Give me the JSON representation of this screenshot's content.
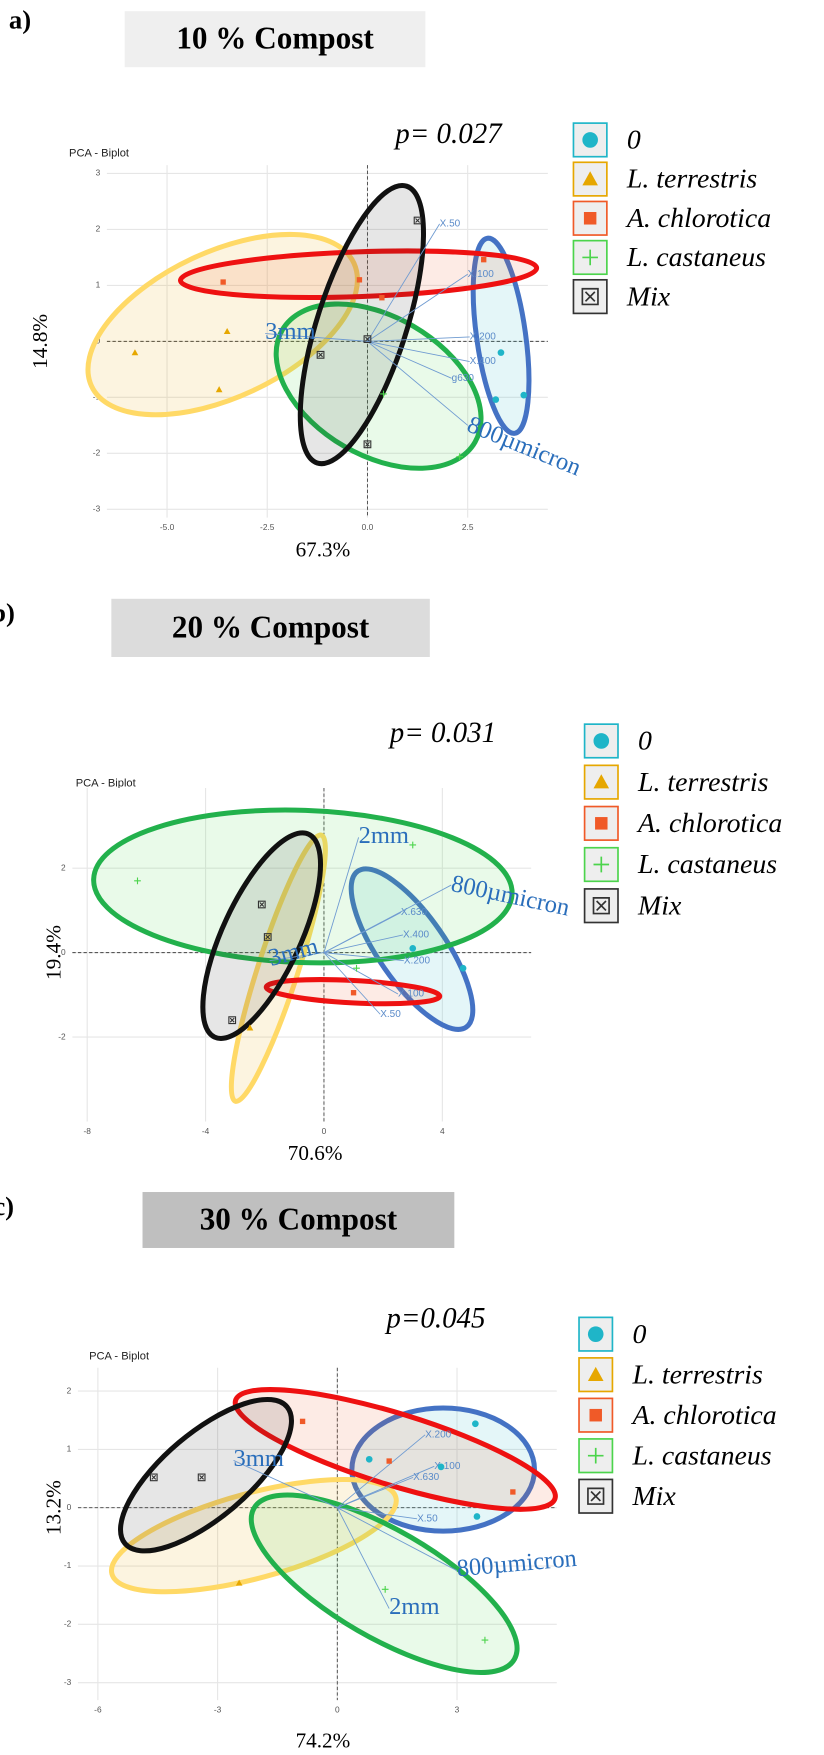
{
  "chart_data": [
    {
      "type": "biplot",
      "panel_label": "a)",
      "title": "10 % Compost",
      "annotation": "p= 0.027",
      "subtitle": "PCA - Biplot",
      "xlabel": "67.3%",
      "ylabel": "14.8%",
      "grid": true,
      "xlim": [
        -6.5,
        4.5
      ],
      "ylim": [
        -3.15,
        3.15
      ],
      "xticks": [
        {
          "value": -5,
          "label": "-5.0"
        },
        {
          "value": -2.5,
          "label": "-2.5"
        },
        {
          "value": 0,
          "label": "0.0"
        },
        {
          "value": 2.5,
          "label": "2.5"
        }
      ],
      "yticks": [
        -3,
        -2,
        -1,
        0,
        1,
        2,
        3
      ],
      "series": [
        {
          "name": "0",
          "color": "#1fb5c8",
          "ellipse_color": "#4472c4",
          "marker": "circle",
          "x": [
            3.33,
            3.2,
            3.9
          ],
          "values": [
            -0.2,
            -1.04,
            -0.96
          ]
        },
        {
          "name": "L. terrestris",
          "color": "#e6a700",
          "ellipse_color": "#ffd966",
          "marker": "triangle",
          "x": [
            -5.8,
            -3.7,
            -3.5
          ],
          "values": [
            -0.2,
            -0.86,
            0.18
          ]
        },
        {
          "name": "A. chlorotica",
          "color": "#f05a28",
          "ellipse_color": "#ee1111",
          "marker": "square",
          "x": [
            -3.6,
            0.36,
            2.9,
            -0.2
          ],
          "values": [
            1.06,
            0.78,
            1.46,
            1.1
          ]
        },
        {
          "name": "L. castaneus",
          "color": "#4cd44c",
          "ellipse_color": "#22b14c",
          "marker": "plus",
          "x": [
            2.3,
            0.4
          ],
          "values": [
            -2.06,
            -0.94
          ]
        },
        {
          "name": "Mix",
          "color": "#333333",
          "ellipse_color": "#111111",
          "marker": "boxx",
          "x": [
            1.25,
            -1.17,
            0,
            0
          ],
          "values": [
            2.16,
            -0.24,
            -1.84,
            0.04
          ]
        }
      ],
      "vectors": [
        {
          "label": "X.100",
          "x": 2.5,
          "y": 1.2
        },
        {
          "label": "X.200",
          "x": 2.55,
          "y": 0.08
        },
        {
          "label": "X.400",
          "x": 2.55,
          "y": -0.36
        },
        {
          "label": "X.50",
          "x": 1.8,
          "y": 2.1
        },
        {
          "label": "g630",
          "x": 2.1,
          "y": -0.66
        }
      ],
      "annotations": [
        {
          "label": "3mm",
          "x": -2.55,
          "y": 0.14
        },
        {
          "label": "800µmicron",
          "x": 2.5,
          "y": -1.5
        }
      ]
    },
    {
      "type": "biplot",
      "panel_label": "b)",
      "title": "20 % Compost",
      "annotation": "p= 0.031",
      "subtitle": "PCA - Biplot",
      "xlabel": "70.6%",
      "ylabel": "19.4%",
      "grid": true,
      "xlim": [
        -8.5,
        7
      ],
      "ylim": [
        -4,
        3.9
      ],
      "xticks": [
        -8,
        -4,
        0,
        4
      ],
      "yticks": [
        -2,
        0,
        2
      ],
      "series": [
        {
          "name": "0",
          "color": "#1fb5c8",
          "ellipse_color": "#4472c4",
          "marker": "circle",
          "x": [
            3.0,
            4.7
          ],
          "values": [
            0.1,
            -0.37
          ]
        },
        {
          "name": "L. terrestris",
          "color": "#e6a700",
          "ellipse_color": "#ffd966",
          "marker": "triangle",
          "x": [
            -2.5
          ],
          "values": [
            -1.78
          ]
        },
        {
          "name": "A. chlorotica",
          "color": "#f05a28",
          "ellipse_color": "#ee1111",
          "marker": "square",
          "x": [
            1.0
          ],
          "values": [
            -0.95
          ]
        },
        {
          "name": "L. castaneus",
          "color": "#4cd44c",
          "ellipse_color": "#22b14c",
          "marker": "plus",
          "x": [
            -6.3,
            3.0,
            1.1
          ],
          "values": [
            1.7,
            2.55,
            -0.37
          ]
        },
        {
          "name": "Mix",
          "color": "#333333",
          "ellipse_color": "#111111",
          "marker": "boxx",
          "x": [
            -2.1,
            -1.9,
            -3.1
          ],
          "values": [
            1.14,
            0.37,
            -1.6
          ]
        }
      ],
      "vectors": [
        {
          "label": "X.100",
          "x": 2.5,
          "y": -0.98
        },
        {
          "label": "X.200",
          "x": 2.7,
          "y": -0.19
        },
        {
          "label": "X.400",
          "x": 2.67,
          "y": 0.42
        },
        {
          "label": "X.630",
          "x": 2.6,
          "y": 0.95
        },
        {
          "label": "X.50",
          "x": 1.9,
          "y": -1.46
        }
      ],
      "annotations": [
        {
          "label": "2mm",
          "x": 1.17,
          "y": 2.73
        },
        {
          "label": "800µmicron",
          "x": 4.3,
          "y": 1.6
        },
        {
          "label": "3mm",
          "x": -1.84,
          "y": -0.19
        }
      ]
    },
    {
      "type": "biplot",
      "panel_label": "c)",
      "title": "30 % Compost",
      "annotation": "p=0.045",
      "subtitle": "PCA - Biplot",
      "xlabel": "74.2%",
      "ylabel": "13.2%",
      "grid": true,
      "xlim": [
        -6.5,
        5.5
      ],
      "ylim": [
        -3.3,
        2.4
      ],
      "xticks": [
        -6,
        -3,
        0,
        3
      ],
      "yticks": [
        -3,
        -2,
        -1,
        0,
        1,
        2
      ],
      "series": [
        {
          "name": "0",
          "color": "#1fb5c8",
          "ellipse_color": "#4472c4",
          "marker": "circle",
          "x": [
            3.46,
            0.8,
            2.6,
            3.5
          ],
          "values": [
            1.44,
            0.83,
            0.7,
            -0.15
          ]
        },
        {
          "name": "L. terrestris",
          "color": "#e6a700",
          "ellipse_color": "#ffd966",
          "marker": "triangle",
          "x": [
            -2.46
          ],
          "values": [
            -1.29
          ]
        },
        {
          "name": "A. chlorotica",
          "color": "#f05a28",
          "ellipse_color": "#ee1111",
          "marker": "square",
          "x": [
            -0.87,
            1.3,
            4.4
          ],
          "values": [
            1.48,
            0.8,
            0.27
          ]
        },
        {
          "name": "L. castaneus",
          "color": "#4cd44c",
          "ellipse_color": "#22b14c",
          "marker": "plus",
          "x": [
            1.2,
            3.7
          ],
          "values": [
            -1.4,
            -2.27
          ]
        },
        {
          "name": "Mix",
          "color": "#333333",
          "ellipse_color": "#111111",
          "marker": "boxx",
          "x": [
            -4.6,
            -3.4
          ],
          "values": [
            0.52,
            0.52
          ]
        }
      ],
      "vectors": [
        {
          "label": "X.200",
          "x": 2.2,
          "y": 1.25
        },
        {
          "label": "X.100",
          "x": 2.43,
          "y": 0.71
        },
        {
          "label": "X.630",
          "x": 1.9,
          "y": 0.52
        },
        {
          "label": "X.50",
          "x": 2.0,
          "y": -0.19
        }
      ],
      "annotations": [
        {
          "label": "3mm",
          "x": -2.6,
          "y": 0.81
        },
        {
          "label": "800µmicron",
          "x": 3.0,
          "y": -1.08
        },
        {
          "label": "2mm",
          "x": 1.3,
          "y": -1.73
        }
      ]
    }
  ]
}
